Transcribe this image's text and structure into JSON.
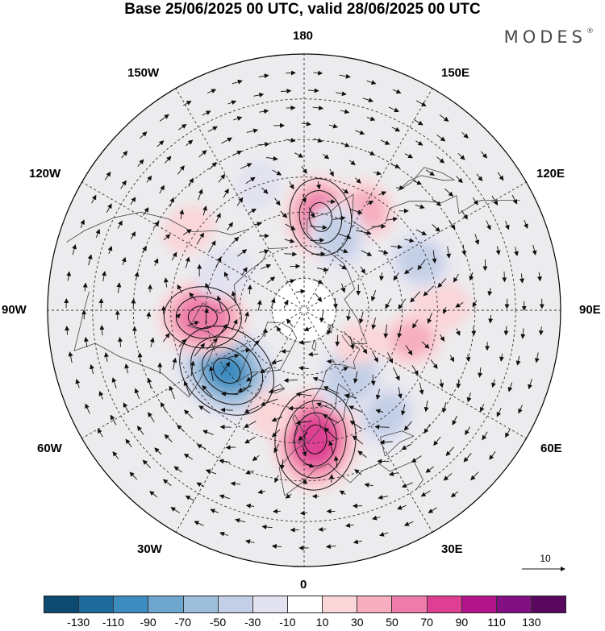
{
  "title": "Base 25/06/2025 00 UTC, valid 28/06/2025 00 UTC",
  "brand": {
    "name": "MODES",
    "mark": "®"
  },
  "longitude_labels": {
    "lon_180": "180",
    "lon_150e": "150E",
    "lon_120e": "120E",
    "lon_90e": "90E",
    "lon_60e": "60E",
    "lon_30e": "30E",
    "lon_0": "0",
    "lon_30w": "30W",
    "lon_60w": "60W",
    "lon_90w": "90W",
    "lon_120w": "120W",
    "lon_150w": "150W"
  },
  "reference_vector": {
    "label": "10"
  },
  "colorbar": {
    "colors": [
      "#0d4a6f",
      "#1d6a9b",
      "#3d8cbf",
      "#6ea6cf",
      "#9dbfdc",
      "#c3cfe6",
      "#e2e2f1",
      "#ffffff",
      "#fad6d9",
      "#f6aec0",
      "#ee7ca9",
      "#de3f93",
      "#b4148a",
      "#831082",
      "#58085f"
    ],
    "ticks": [
      "-130",
      "-110",
      "-90",
      "-70",
      "-50",
      "-30",
      "-10",
      "10",
      "30",
      "50",
      "70",
      "90",
      "110",
      "130"
    ]
  },
  "anomaly_cells": [
    {
      "lat": 51,
      "lon": 5,
      "value": 95
    },
    {
      "lat": 60,
      "lon": -52,
      "value": -100
    },
    {
      "lat": 59,
      "lon": -86,
      "value": 75
    },
    {
      "lat": 61,
      "lon": 170,
      "value": 70
    },
    {
      "lat": 65,
      "lon": 35,
      "value": -55
    },
    {
      "lat": 50,
      "lon": 38,
      "value": -45
    },
    {
      "lat": 56,
      "lon": 75,
      "value": 40
    },
    {
      "lat": 49,
      "lon": 92,
      "value": 35
    },
    {
      "lat": 52,
      "lon": 113,
      "value": -45
    },
    {
      "lat": 54,
      "lon": 148,
      "value": 40
    },
    {
      "lat": 65,
      "lon": 155,
      "value": -45
    },
    {
      "lat": 48,
      "lon": -125,
      "value": 30
    },
    {
      "lat": 63,
      "lon": -115,
      "value": -35
    },
    {
      "lat": 50,
      "lon": -160,
      "value": -25
    },
    {
      "lat": 70,
      "lon": 60,
      "value": 25
    },
    {
      "lat": 57,
      "lon": -18,
      "value": 25
    }
  ]
}
